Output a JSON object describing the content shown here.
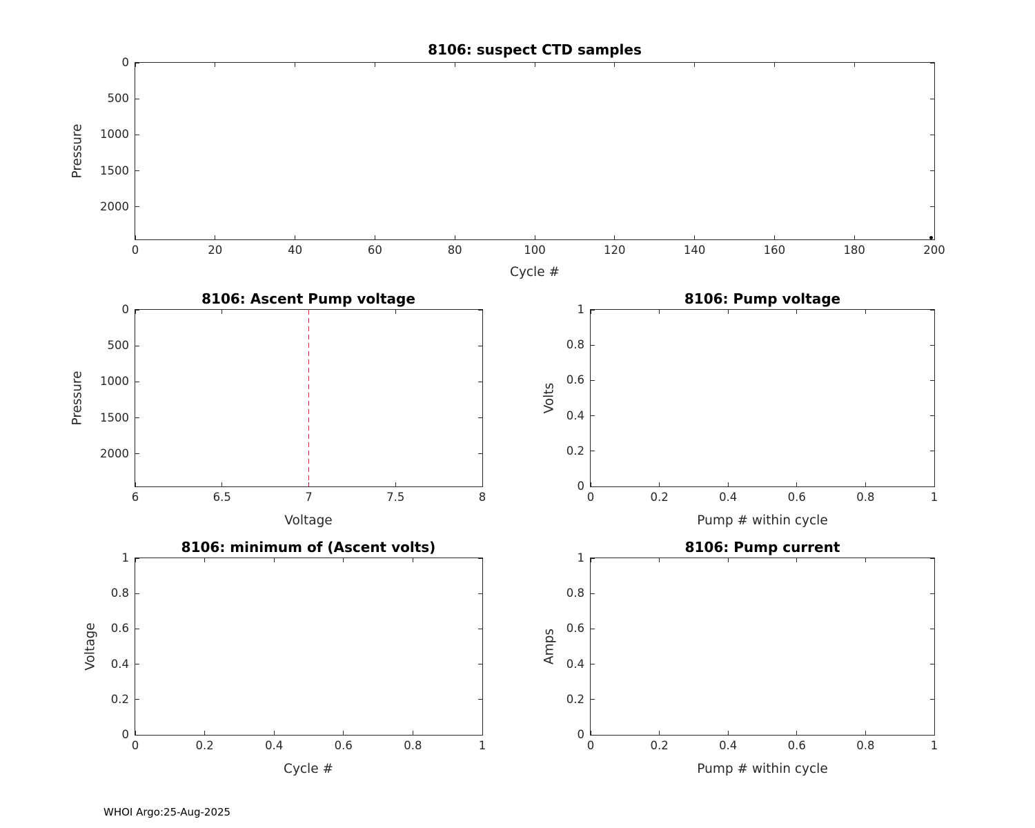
{
  "figure": {
    "footer": "WHOI Argo:25-Aug-2025",
    "axis_color": "#262626",
    "background": "#ffffff"
  },
  "chart_data": [
    {
      "id": "suspect-ctd-samples",
      "type": "scatter",
      "title": "8106: suspect CTD samples",
      "xlabel": "Cycle #",
      "ylabel": "Pressure",
      "xlim": [
        0,
        200
      ],
      "ylim": [
        0,
        2450
      ],
      "y_reversed": true,
      "xticks": [
        0,
        20,
        40,
        60,
        80,
        100,
        120,
        140,
        160,
        180,
        200
      ],
      "xtick_labels": [
        "0",
        "20",
        "40",
        "60",
        "80",
        "100",
        "120",
        "140",
        "160",
        "180",
        "200"
      ],
      "yticks": [
        0,
        500,
        1000,
        1500,
        2000
      ],
      "ytick_labels": [
        "0",
        "500",
        "1000",
        "1500",
        "2000"
      ],
      "grid": false,
      "legend": "none",
      "points": [
        {
          "x": 199.3,
          "y": 2430
        }
      ],
      "vlines": []
    },
    {
      "id": "ascent-pump-voltage",
      "type": "line",
      "title": "8106: Ascent Pump voltage",
      "xlabel": "Voltage",
      "ylabel": "Pressure",
      "xlim": [
        6,
        8
      ],
      "ylim": [
        0,
        2450
      ],
      "y_reversed": true,
      "xticks": [
        6,
        6.5,
        7,
        7.5,
        8
      ],
      "xtick_labels": [
        "6",
        "6.5",
        "7",
        "7.5",
        "8"
      ],
      "yticks": [
        0,
        500,
        1000,
        1500,
        2000
      ],
      "ytick_labels": [
        "0",
        "500",
        "1000",
        "1500",
        "2000"
      ],
      "grid": false,
      "legend": "none",
      "points": [],
      "vlines": [
        {
          "x": 7,
          "color": "#dc143c",
          "style": "dashed"
        }
      ]
    },
    {
      "id": "pump-voltage",
      "type": "line",
      "title": "8106: Pump voltage",
      "xlabel": "Pump # within cycle",
      "ylabel": "Volts",
      "xlim": [
        0,
        1
      ],
      "ylim": [
        0,
        1
      ],
      "y_reversed": false,
      "xticks": [
        0,
        0.2,
        0.4,
        0.6,
        0.8,
        1
      ],
      "xtick_labels": [
        "0",
        "0.2",
        "0.4",
        "0.6",
        "0.8",
        "1"
      ],
      "yticks": [
        0,
        0.2,
        0.4,
        0.6,
        0.8,
        1
      ],
      "ytick_labels": [
        "0",
        "0.2",
        "0.4",
        "0.6",
        "0.8",
        "1"
      ],
      "grid": false,
      "legend": "none",
      "points": [],
      "vlines": []
    },
    {
      "id": "minimum-ascent-volts",
      "type": "line",
      "title": "8106: minimum of (Ascent volts)",
      "xlabel": "Cycle #",
      "ylabel": "Voltage",
      "xlim": [
        0,
        1
      ],
      "ylim": [
        0,
        1
      ],
      "y_reversed": false,
      "xticks": [
        0,
        0.2,
        0.4,
        0.6,
        0.8,
        1
      ],
      "xtick_labels": [
        "0",
        "0.2",
        "0.4",
        "0.6",
        "0.8",
        "1"
      ],
      "yticks": [
        0,
        0.2,
        0.4,
        0.6,
        0.8,
        1
      ],
      "ytick_labels": [
        "0",
        "0.2",
        "0.4",
        "0.6",
        "0.8",
        "1"
      ],
      "grid": false,
      "legend": "none",
      "points": [],
      "vlines": []
    },
    {
      "id": "pump-current",
      "type": "line",
      "title": "8106: Pump current",
      "xlabel": "Pump # within cycle",
      "ylabel": "Amps",
      "xlim": [
        0,
        1
      ],
      "ylim": [
        0,
        1
      ],
      "y_reversed": false,
      "xticks": [
        0,
        0.2,
        0.4,
        0.6,
        0.8,
        1
      ],
      "xtick_labels": [
        "0",
        "0.2",
        "0.4",
        "0.6",
        "0.8",
        "1"
      ],
      "yticks": [
        0,
        0.2,
        0.4,
        0.6,
        0.8,
        1
      ],
      "ytick_labels": [
        "0",
        "0.2",
        "0.4",
        "0.6",
        "0.8",
        "1"
      ],
      "grid": false,
      "legend": "none",
      "points": [],
      "vlines": []
    }
  ]
}
